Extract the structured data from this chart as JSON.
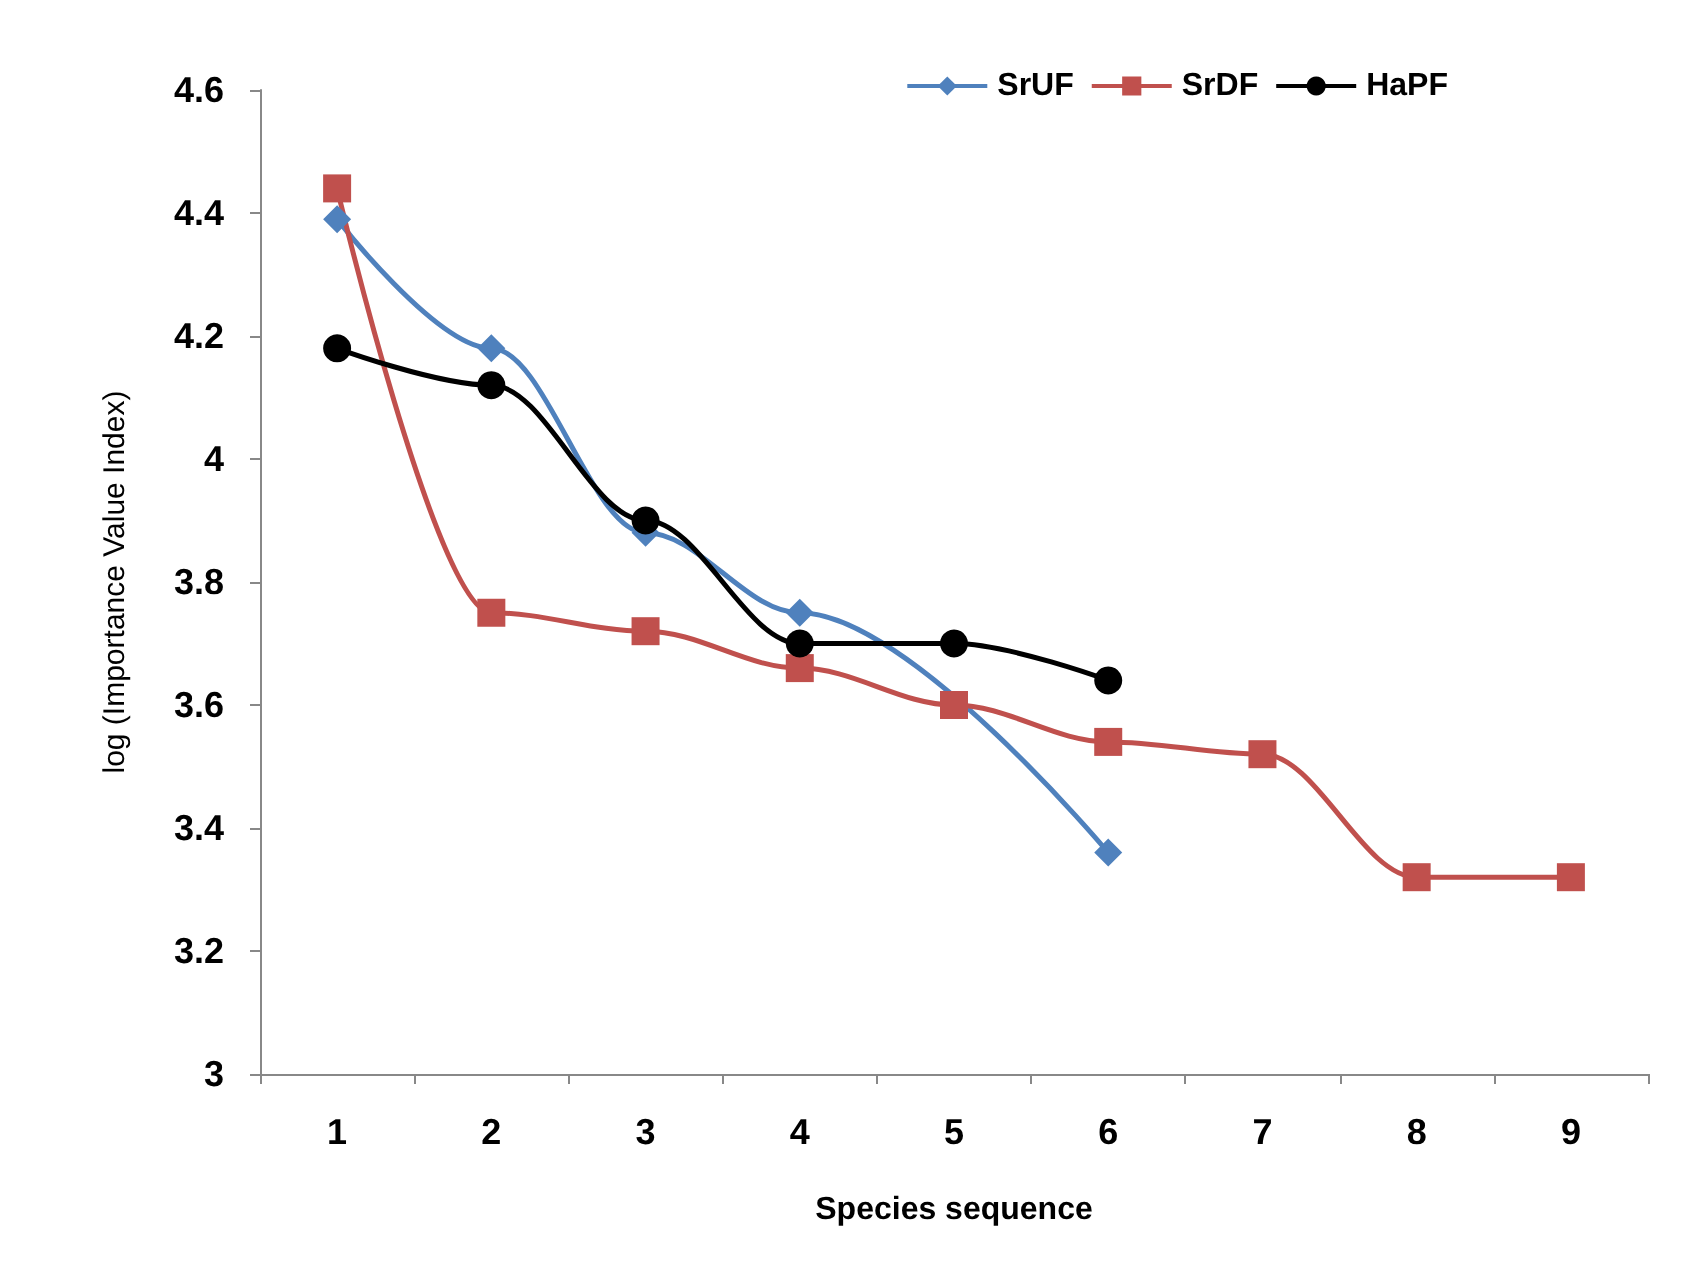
{
  "chart_data": {
    "type": "line",
    "xlabel": "Species sequence",
    "ylabel": "log (Importance Value Index)",
    "categories": [
      "1",
      "2",
      "3",
      "4",
      "5",
      "6",
      "7",
      "8",
      "9"
    ],
    "series": [
      {
        "name": "SrUF",
        "color": "#4f81bd",
        "marker": "diamond",
        "values": [
          4.39,
          4.18,
          3.88,
          3.75,
          null,
          3.36,
          null,
          null,
          null
        ]
      },
      {
        "name": "SrDF",
        "color": "#c0504d",
        "marker": "square",
        "values": [
          4.44,
          3.75,
          3.72,
          3.66,
          3.6,
          3.54,
          3.52,
          3.32,
          3.32
        ]
      },
      {
        "name": "HaPF",
        "color": "#000000",
        "marker": "circle",
        "values": [
          4.18,
          4.12,
          3.9,
          3.7,
          3.7,
          3.64,
          null,
          null,
          null
        ]
      }
    ],
    "ylim": [
      3,
      4.6
    ],
    "yticks": [
      3,
      3.2,
      3.4,
      3.6,
      3.8,
      4,
      4.2,
      4.4,
      4.6
    ],
    "grid": false,
    "legend": "top right"
  }
}
